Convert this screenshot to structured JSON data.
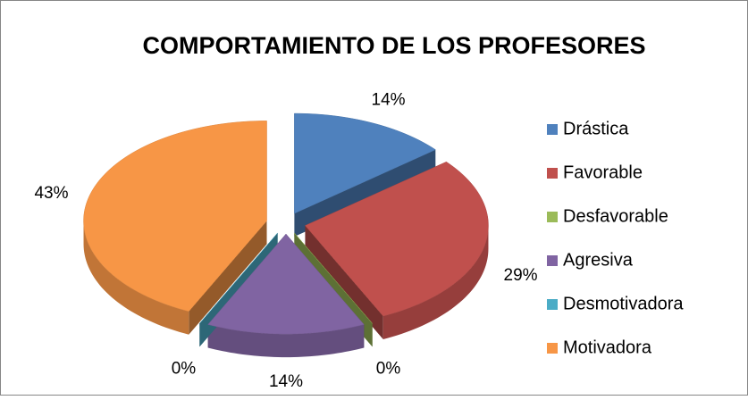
{
  "chart_data": {
    "type": "pie",
    "title": "COMPORTAMIENTO DE LOS PROFESORES",
    "categories": [
      "Drástica",
      "Favorable",
      "Desfavorable",
      "Agresiva",
      "Desmotivadora",
      "Motivadora"
    ],
    "values": [
      14,
      29,
      0,
      14,
      0,
      43
    ],
    "value_labels": [
      "14%",
      "29%",
      "0%",
      "14%",
      "0%",
      "43%"
    ],
    "colors": [
      "#4f81bd",
      "#c0504d",
      "#9bbb59",
      "#8064a2",
      "#4bacc6",
      "#f79646"
    ],
    "legend": "right"
  }
}
